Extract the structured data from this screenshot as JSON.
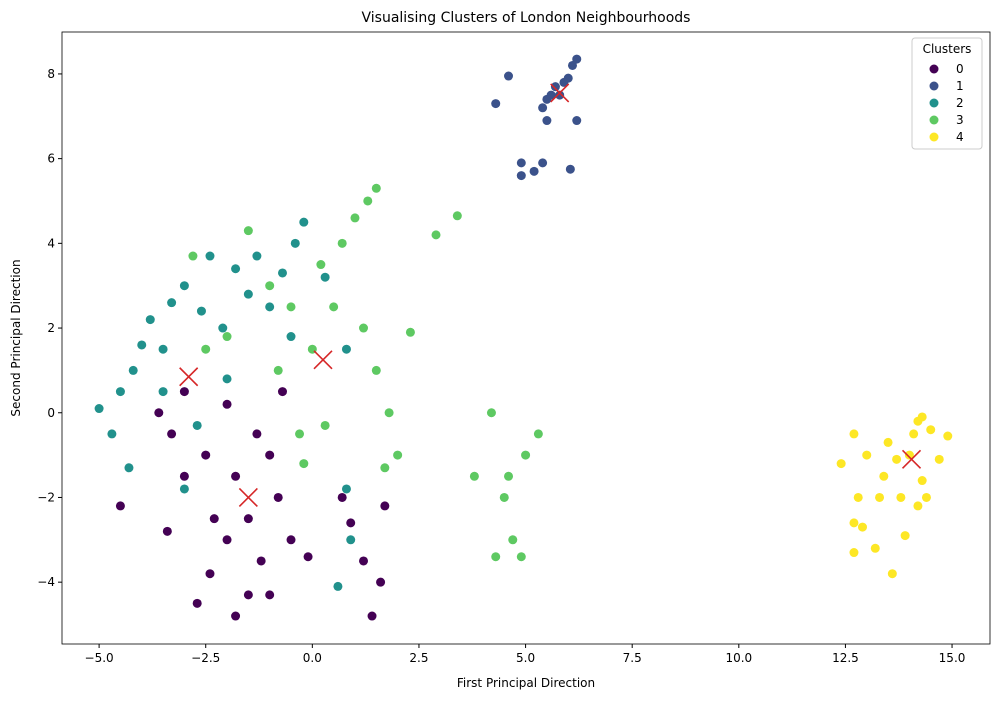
{
  "chart_data": {
    "type": "scatter",
    "title": "Visualising Clusters of London Neighbourhoods",
    "xlabel": "First Principal Direction",
    "ylabel": "Second Principal Direction",
    "xlim": [
      -5.87,
      15.89
    ],
    "ylim": [
      -5.46,
      8.99
    ],
    "xticks": [
      {
        "value": -5,
        "label": "−5.0"
      },
      {
        "value": -2.5,
        "label": "−2.5"
      },
      {
        "value": 0,
        "label": "0.0"
      },
      {
        "value": 2.5,
        "label": "2.5"
      },
      {
        "value": 5,
        "label": "5.0"
      },
      {
        "value": 7.5,
        "label": "7.5"
      },
      {
        "value": 10,
        "label": "10.0"
      },
      {
        "value": 12.5,
        "label": "12.5"
      },
      {
        "value": 15,
        "label": "15.0"
      }
    ],
    "yticks": [
      {
        "value": -4,
        "label": "−4"
      },
      {
        "value": -2,
        "label": "−2"
      },
      0,
      2,
      4,
      6,
      8
    ],
    "legend_title": "Clusters",
    "legend": "upper right",
    "series": [
      {
        "name": "0",
        "color": "#440154",
        "x": [
          -4.5,
          -3.3,
          -3.0,
          -2.5,
          -2.3,
          -2.0,
          -1.8,
          -1.5,
          -1.5,
          -1.8,
          -1.2,
          -1.0,
          -0.8,
          -0.5,
          -0.7,
          -2.7,
          -3.0,
          -3.6,
          -2.0,
          -1.3,
          -0.1,
          0.7,
          0.9,
          1.2,
          1.4,
          1.7,
          1.6,
          -1.0,
          -2.4,
          -3.4
        ],
        "y": [
          -2.2,
          -0.5,
          -1.5,
          -1.0,
          -2.5,
          -3.0,
          -1.5,
          -2.5,
          -4.3,
          -4.8,
          -3.5,
          -1.0,
          -2.0,
          -3.0,
          0.5,
          -4.5,
          0.5,
          0.0,
          0.2,
          -0.5,
          -3.4,
          -2.0,
          -2.6,
          -3.5,
          -4.8,
          -2.2,
          -4.0,
          -4.3,
          -3.8,
          -2.8
        ]
      },
      {
        "name": "1",
        "color": "#3b528b",
        "x": [
          4.3,
          4.6,
          4.9,
          4.9,
          5.4,
          5.2,
          5.4,
          5.5,
          5.6,
          5.8,
          6.0,
          6.2,
          6.1,
          5.9,
          6.2,
          6.05,
          5.7,
          5.5
        ],
        "y": [
          7.3,
          7.95,
          5.9,
          5.6,
          5.9,
          5.7,
          7.2,
          6.9,
          7.5,
          7.5,
          7.9,
          8.35,
          8.2,
          7.8,
          6.9,
          5.75,
          7.7,
          7.4
        ]
      },
      {
        "name": "2",
        "color": "#21918c",
        "x": [
          -5.0,
          -4.7,
          -4.5,
          -4.3,
          -4.2,
          -4.0,
          -3.8,
          -3.5,
          -3.3,
          -3.0,
          -3.5,
          -2.7,
          -3.0,
          -2.6,
          -2.4,
          -2.1,
          -1.8,
          -1.5,
          -1.3,
          -1.0,
          -0.7,
          -0.4,
          -0.5,
          -0.2,
          0.3,
          0.8,
          0.6,
          0.8,
          0.9,
          -2.0
        ],
        "y": [
          0.1,
          -0.5,
          0.5,
          -1.3,
          1.0,
          1.6,
          2.2,
          1.5,
          2.6,
          3.0,
          0.5,
          -0.3,
          -1.8,
          2.4,
          3.7,
          2.0,
          3.4,
          2.8,
          3.7,
          2.5,
          3.3,
          4.0,
          1.8,
          4.5,
          3.2,
          1.5,
          -4.1,
          -1.8,
          -3.0,
          0.8
        ]
      },
      {
        "name": "3",
        "color": "#5ec962",
        "x": [
          -2.8,
          -2.5,
          -2.0,
          -1.5,
          -1.0,
          -0.8,
          -0.5,
          -0.3,
          0.0,
          0.2,
          0.5,
          0.7,
          1.0,
          1.3,
          1.5,
          1.2,
          1.5,
          1.8,
          2.0,
          1.7,
          0.3,
          -0.2,
          2.3,
          2.9,
          3.4,
          4.2,
          3.8,
          4.5,
          4.7,
          4.9,
          5.3,
          5.0,
          4.3,
          4.6
        ],
        "y": [
          3.7,
          1.5,
          1.8,
          4.3,
          3.0,
          1.0,
          2.5,
          -0.5,
          1.5,
          3.5,
          2.5,
          4.0,
          4.6,
          5.0,
          5.3,
          2.0,
          1.0,
          0.0,
          -1.0,
          -1.3,
          -0.3,
          -1.2,
          1.9,
          4.2,
          4.65,
          0.0,
          -1.5,
          -2.0,
          -3.0,
          -3.4,
          -0.5,
          -1.0,
          -3.4,
          -1.5
        ]
      },
      {
        "name": "4",
        "color": "#fde725",
        "x": [
          12.4,
          12.7,
          12.8,
          12.7,
          12.7,
          12.9,
          13.0,
          13.2,
          13.3,
          13.4,
          13.5,
          13.6,
          13.7,
          13.8,
          13.9,
          14.0,
          14.1,
          14.2,
          14.3,
          14.3,
          14.4,
          14.5,
          14.7,
          14.9,
          14.2
        ],
        "y": [
          -1.2,
          -0.5,
          -2.0,
          -2.6,
          -3.3,
          -2.7,
          -1.0,
          -3.2,
          -2.0,
          -1.5,
          -0.7,
          -3.8,
          -1.1,
          -2.0,
          -2.9,
          -1.0,
          -0.5,
          -0.2,
          -0.1,
          -1.6,
          -2.0,
          -0.4,
          -1.1,
          -0.55,
          -2.2
        ]
      }
    ],
    "centroids": {
      "color": "#d62728",
      "x": [
        -1.5,
        5.8,
        -2.9,
        0.25,
        14.05
      ],
      "y": [
        -2.0,
        7.55,
        0.85,
        1.25,
        -1.1
      ]
    }
  }
}
